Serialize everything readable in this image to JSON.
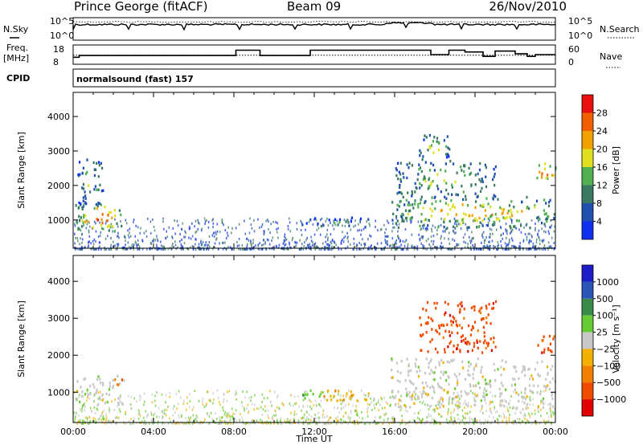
{
  "header": {
    "station": "Prince George (fitACF)",
    "beam": "Beam 09",
    "date": "26/Nov/2010"
  },
  "labels": {
    "nsky": "N.Sky",
    "nsearch": "N.Search",
    "freq_top": "Freq.",
    "freq_unit": "[MHz]",
    "nave": "Nave",
    "cpid": "CPID",
    "program": "normalsound (fast) 157",
    "noise_tick_hi": "10^5",
    "noise_tick_lo": "10^0",
    "freq_tick_hi": "18",
    "freq_tick_lo": "8",
    "nave_tick_hi": "60",
    "nave_tick_lo": "0"
  },
  "colors": {
    "power": [
      "#1030f0",
      "#2050b0",
      "#3a7a60",
      "#50b050",
      "#e0e020",
      "#f0a000",
      "#f06000",
      "#e81010"
    ],
    "velocity": [
      "#1c1cc8",
      "#2a55b8",
      "#3a8a4a",
      "#66cc33",
      "#c8c8c8",
      "#f2b000",
      "#f28000",
      "#f04a00",
      "#e00000"
    ]
  },
  "chart_data": [
    {
      "type": "line",
      "name": "noise",
      "series": [
        {
          "label": "N.Sky"
        },
        {
          "label": "N.Search"
        }
      ],
      "x": [
        0,
        1,
        2,
        3,
        4,
        5,
        6,
        7,
        8,
        9,
        10,
        11,
        12,
        13,
        14,
        15,
        16,
        17,
        18,
        19,
        20,
        21,
        22,
        23,
        24
      ],
      "note_visible": "stepped traces near top of panel"
    },
    {
      "type": "line",
      "name": "freq-nave",
      "x": [
        0,
        0.3,
        7.1,
        8.1,
        9.3,
        11.8,
        15.8,
        17.8,
        18.7,
        19.5,
        20.4,
        21.0,
        22.0,
        22.6,
        23.0,
        24
      ],
      "freq_mhz": [
        11.5,
        12.5,
        12.5,
        15.5,
        12.5,
        15.5,
        15.5,
        13.0,
        15.5,
        14.5,
        12.0,
        15.0,
        13.5,
        12.0,
        13.0,
        13.0
      ],
      "freq_range": [
        8,
        18
      ],
      "nave_dotted": 28,
      "nave_range": [
        0,
        60
      ]
    },
    {
      "type": "heatmap",
      "name": "power",
      "xlabel": "",
      "ylabel": "Slant Range [km]",
      "xlim": [
        0,
        24
      ],
      "ylim": [
        180,
        4700
      ],
      "yticks": [
        "1000",
        "2000",
        "3000",
        "4000"
      ],
      "colorbar": {
        "label": "Power [dB]",
        "ticks": [
          "4",
          "8",
          "12",
          "16",
          "20",
          "24",
          "28"
        ],
        "range": [
          0,
          32
        ]
      },
      "features": [
        {
          "t0": 0.1,
          "t1": 2.5,
          "r0": 700,
          "r1": 1500,
          "level": 0.9
        },
        {
          "t0": 0.2,
          "t1": 1.5,
          "r0": 1500,
          "r1": 2800,
          "level": 0.45
        },
        {
          "t0": 11.2,
          "t1": 14.8,
          "r0": 800,
          "r1": 1100,
          "level": 0.3
        },
        {
          "t0": 15.8,
          "t1": 24,
          "r0": 800,
          "r1": 1700,
          "level": 0.75
        },
        {
          "t0": 16.0,
          "t1": 21.0,
          "r0": 1700,
          "r1": 2700,
          "level": 0.55
        },
        {
          "t0": 17.2,
          "t1": 18.8,
          "r0": 2700,
          "r1": 3500,
          "level": 0.55
        },
        {
          "t0": 23.0,
          "t1": 24.0,
          "r0": 2100,
          "r1": 2700,
          "level": 0.9
        }
      ]
    },
    {
      "type": "heatmap",
      "name": "velocity",
      "xlabel": "Time UT",
      "ylabel": "Slant Range [km]",
      "xlim": [
        0,
        24
      ],
      "ylim": [
        180,
        4700
      ],
      "xticks": [
        "00:00",
        "04:00",
        "08:00",
        "12:00",
        "16:00",
        "20:00",
        "00:00"
      ],
      "yticks": [
        "1000",
        "2000",
        "3000",
        "4000"
      ],
      "colorbar": {
        "label": "Velocity [m s⁻¹]",
        "ticks": [
          "1000",
          "500",
          "100",
          "25",
          "−25",
          "−100",
          "−500",
          "−1000"
        ]
      },
      "features": [
        {
          "t0": 0.1,
          "t1": 2.5,
          "r0": 700,
          "r1": 1500,
          "class": 4
        },
        {
          "t0": 2.0,
          "t1": 2.4,
          "r0": 1200,
          "r1": 1450,
          "class": 6
        },
        {
          "t0": 11.3,
          "t1": 12.3,
          "r0": 800,
          "r1": 1100,
          "class": 3
        },
        {
          "t0": 12.3,
          "t1": 15.0,
          "r0": 800,
          "r1": 1100,
          "class": 5
        },
        {
          "t0": 15.8,
          "t1": 24,
          "r0": 600,
          "r1": 1950,
          "class": 4
        },
        {
          "t0": 17.2,
          "t1": 21.0,
          "r0": 2100,
          "r1": 3500,
          "class": 7
        },
        {
          "t0": 23.0,
          "t1": 24.0,
          "r0": 2100,
          "r1": 2600,
          "class": 7
        }
      ]
    }
  ]
}
